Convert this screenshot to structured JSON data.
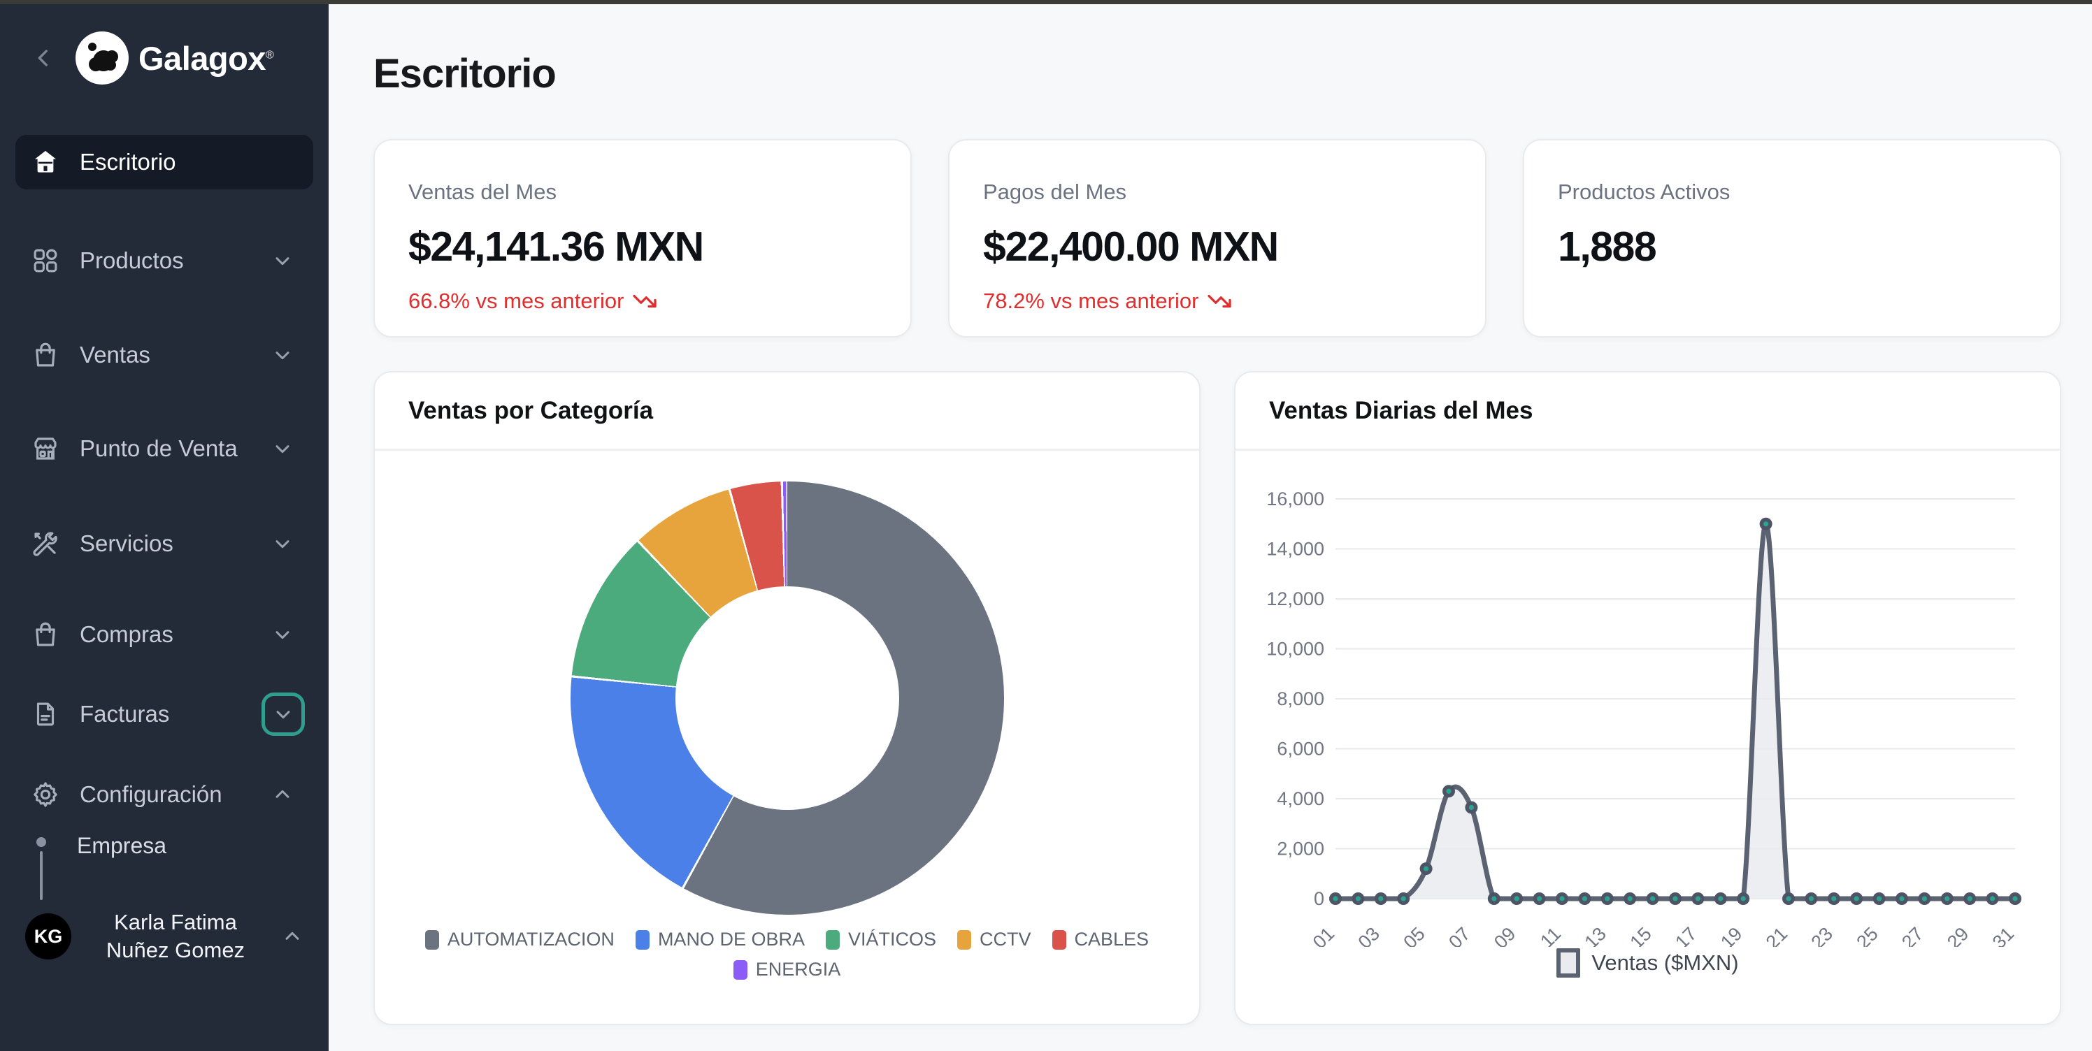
{
  "window": {
    "top_strip_color": "#3b3c35"
  },
  "sidebar": {
    "logo_text": "Galagox",
    "logo_reg": "®",
    "items": [
      {
        "label": "Escritorio",
        "icon": "home-icon",
        "active": true
      },
      {
        "label": "Productos",
        "icon": "grid-icon",
        "chevron": "down"
      },
      {
        "label": "Ventas",
        "icon": "shopping-bag-icon",
        "chevron": "down"
      },
      {
        "label": "Punto de Venta",
        "icon": "storefront-icon",
        "chevron": "down"
      },
      {
        "label": "Servicios",
        "icon": "tools-icon",
        "chevron": "down"
      },
      {
        "label": "Compras",
        "icon": "shopping-bag-icon",
        "chevron": "down"
      },
      {
        "label": "Facturas",
        "icon": "document-icon",
        "chevron": "down",
        "chevron_focus_ring": true,
        "focus_ring_color": "#2f9e8e"
      },
      {
        "label": "Configuración",
        "icon": "gear-icon",
        "chevron": "up",
        "expanded": true
      }
    ],
    "sub_item": {
      "label": "Empresa"
    },
    "user": {
      "initials": "KG",
      "name_line1": "Karla Fatima",
      "name_line2": "Nuñez Gomez",
      "chevron": "up"
    }
  },
  "header": {
    "title": "Escritorio"
  },
  "stat_cards": [
    {
      "label": "Ventas del Mes",
      "value": "$24,141.36 MXN",
      "delta": "66.8% vs mes anterior",
      "delta_direction": "down",
      "delta_color": "#e02e2e"
    },
    {
      "label": "Pagos del Mes",
      "value": "$22,400.00 MXN",
      "delta": "78.2% vs mes anterior",
      "delta_direction": "down",
      "delta_color": "#e02e2e"
    },
    {
      "label": "Productos Activos",
      "value": "1,888"
    }
  ],
  "chart_data": [
    {
      "type": "pie",
      "donut": true,
      "title": "Ventas por Categoría",
      "legend_position": "bottom",
      "legend_wrap_after": 5,
      "slices": [
        {
          "label": "AUTOMATIZACION",
          "pct": 58.0,
          "color": "#6b7280"
        },
        {
          "label": "MANO DE OBRA",
          "pct": 18.6,
          "color": "#4a80e8"
        },
        {
          "label": "VIÁTICOS",
          "pct": 11.3,
          "color": "#4cab7d"
        },
        {
          "label": "CCTV",
          "pct": 7.8,
          "color": "#e7a43c"
        },
        {
          "label": "CABLES",
          "pct": 3.9,
          "color": "#d9534b"
        },
        {
          "label": "ENERGIA",
          "pct": 0.4,
          "color": "#8b5cf6"
        }
      ]
    },
    {
      "type": "line",
      "title": "Ventas Diarias del Mes",
      "series": [
        {
          "name": "Ventas ($MXN)",
          "values": [
            0,
            0,
            0,
            0,
            1200,
            4300,
            3650,
            0,
            0,
            0,
            0,
            0,
            0,
            0,
            0,
            0,
            0,
            0,
            0,
            15000,
            0,
            0,
            0,
            0,
            0,
            0,
            0,
            0,
            0,
            0,
            0
          ]
        }
      ],
      "x": [
        "01",
        "02",
        "03",
        "04",
        "05",
        "06",
        "07",
        "08",
        "09",
        "10",
        "11",
        "12",
        "13",
        "14",
        "15",
        "16",
        "17",
        "18",
        "19",
        "20",
        "21",
        "22",
        "23",
        "24",
        "25",
        "26",
        "27",
        "28",
        "29",
        "30",
        "31"
      ],
      "x_tick_step": 2,
      "ylim": [
        0,
        16000
      ],
      "ytick_interval": 2000,
      "ytick_labels": [
        "0",
        "2,000",
        "4,000",
        "6,000",
        "8,000",
        "10,000",
        "12,000",
        "14,000",
        "16,000"
      ],
      "grid": true,
      "legend_position": "bottom",
      "line_color": "#5b6372",
      "fill_color": "#e9ebef",
      "point_color": "#4d5466",
      "point_inner_color": "#2aa38f",
      "grid_color": "#e7e9ec",
      "axis_text_color": "#707683"
    }
  ]
}
